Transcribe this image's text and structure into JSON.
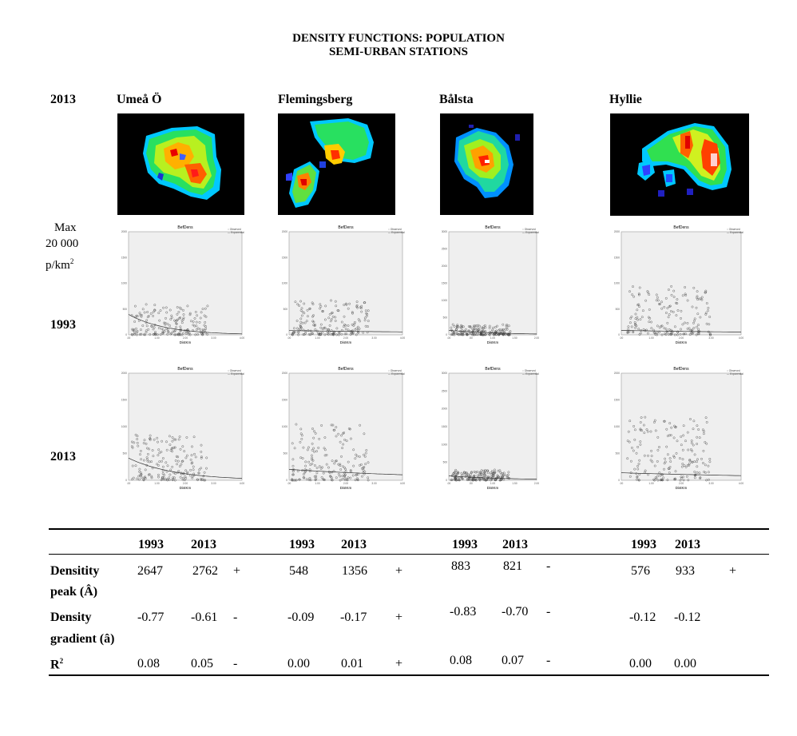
{
  "title": {
    "line1": "DENSITY FUNCTIONS: POPULATION",
    "line2": "SEMI-URBAN STATIONS"
  },
  "row_labels": {
    "maps_year": "2013",
    "row1_year": "1993",
    "row2_year": "2013",
    "max_line1": "Max",
    "max_line2": "20 000",
    "max_line3": "p/km",
    "max_sup": "2"
  },
  "stations": [
    {
      "name": "Umeå Ö"
    },
    {
      "name": "Flemingsberg"
    },
    {
      "name": "Bålsta"
    },
    {
      "name": "Hyllie"
    }
  ],
  "plot_labels": {
    "title": "BefDens",
    "xlabel_default": "DistKm",
    "xlabel_balsta": "DistKm",
    "legend_observed": "Observed",
    "legend_exponential": "Exponential",
    "yticks": [
      "0",
      "500",
      "1000",
      "1500",
      "2000"
    ],
    "yticks_balsta": [
      "0",
      "500",
      "1000",
      "1500",
      "2000",
      "2500",
      "3000"
    ],
    "xticks": [
      ".00",
      "1.00",
      "2.00",
      "3.00",
      "4.00"
    ],
    "xticks_balsta": [
      ".00",
      ".50",
      "1.00",
      "1.50",
      "2.00"
    ]
  },
  "chart_data": [
    {
      "type": "scatter",
      "title": "BefDens",
      "xlabel": "DistKm",
      "station": "Umeå Ö",
      "year": "1993",
      "xlim": [
        0,
        4
      ],
      "ylim": [
        0,
        2000
      ],
      "series": [
        {
          "name": "Observed",
          "peak_y": 600,
          "x_range": [
            0.1,
            2.8
          ]
        },
        {
          "name": "Exponential",
          "a": 2647,
          "b": -0.77
        }
      ]
    },
    {
      "type": "scatter",
      "title": "BefDens",
      "xlabel": "DistKm",
      "station": "Flemingsberg",
      "year": "1993",
      "xlim": [
        0,
        4
      ],
      "ylim": [
        0,
        2000
      ],
      "series": [
        {
          "name": "Observed",
          "peak_y": 700,
          "x_range": [
            0.1,
            2.8
          ]
        },
        {
          "name": "Exponential",
          "a": 548,
          "b": -0.09
        }
      ]
    },
    {
      "type": "scatter",
      "title": "BefDens",
      "xlabel": "DistKm",
      "station": "Bålsta",
      "year": "1993",
      "xlim": [
        0,
        2
      ],
      "ylim": [
        0,
        3000
      ],
      "series": [
        {
          "name": "Observed",
          "peak_y": 300,
          "x_range": [
            0.05,
            1.4
          ]
        },
        {
          "name": "Exponential",
          "a": 883,
          "b": -0.83
        }
      ]
    },
    {
      "type": "scatter",
      "title": "BefDens",
      "xlabel": "DistKm",
      "station": "Hyllie",
      "year": "1993",
      "xlim": [
        0,
        4
      ],
      "ylim": [
        0,
        2000
      ],
      "series": [
        {
          "name": "Observed",
          "peak_y": 950,
          "x_range": [
            0.2,
            3.0
          ]
        },
        {
          "name": "Exponential",
          "a": 576,
          "b": -0.12
        }
      ]
    },
    {
      "type": "scatter",
      "title": "BefDens",
      "xlabel": "DistKm",
      "station": "Umeå Ö",
      "year": "2013",
      "xlim": [
        0,
        4
      ],
      "ylim": [
        0,
        2000
      ],
      "series": [
        {
          "name": "Observed",
          "peak_y": 850,
          "x_range": [
            0.1,
            2.8
          ]
        },
        {
          "name": "Exponential",
          "a": 2762,
          "b": -0.61
        }
      ]
    },
    {
      "type": "scatter",
      "title": "BefDens",
      "xlabel": "DistKm",
      "station": "Flemingsberg",
      "year": "2013",
      "xlim": [
        0,
        4
      ],
      "ylim": [
        0,
        2000
      ],
      "series": [
        {
          "name": "Observed",
          "peak_y": 1050,
          "x_range": [
            0.1,
            2.8
          ]
        },
        {
          "name": "Exponential",
          "a": 1356,
          "b": -0.17
        }
      ]
    },
    {
      "type": "scatter",
      "title": "BefDens",
      "xlabel": "DistKm",
      "station": "Bålsta",
      "year": "2013",
      "xlim": [
        0,
        2
      ],
      "ylim": [
        0,
        3000
      ],
      "series": [
        {
          "name": "Observed",
          "peak_y": 300,
          "x_range": [
            0.05,
            1.4
          ]
        },
        {
          "name": "Exponential",
          "a": 821,
          "b": -0.7
        }
      ]
    },
    {
      "type": "scatter",
      "title": "BefDens",
      "xlabel": "DistKm",
      "station": "Hyllie",
      "year": "2013",
      "xlim": [
        0,
        4
      ],
      "ylim": [
        0,
        2000
      ],
      "series": [
        {
          "name": "Observed",
          "peak_y": 1200,
          "x_range": [
            0.2,
            3.0
          ]
        },
        {
          "name": "Exponential",
          "a": 933,
          "b": -0.12
        }
      ]
    }
  ],
  "table": {
    "years": [
      "1993",
      "2013"
    ],
    "rows": [
      {
        "label1": "Densitity",
        "label2": "peak (Â)",
        "groups": [
          {
            "v1993": "2647",
            "v2013": "2762",
            "sign": "+"
          },
          {
            "v1993": "548",
            "v2013": "1356",
            "sign": "+"
          },
          {
            "v1993": "883",
            "v2013": "821",
            "sign": "-"
          },
          {
            "v1993": "576",
            "v2013": "933",
            "sign": "+"
          }
        ]
      },
      {
        "label1": "Density",
        "label2": "gradient (â)",
        "groups": [
          {
            "v1993": "-0.77",
            "v2013": "-0.61",
            "sign": "-"
          },
          {
            "v1993": "-0.09",
            "v2013": "-0.17",
            "sign": "+"
          },
          {
            "v1993": "-0.83",
            "v2013": "-0.70",
            "sign": "-"
          },
          {
            "v1993": "-0.12",
            "v2013": "-0.12",
            "sign": ""
          }
        ]
      },
      {
        "label1": "R",
        "label_sup": "2",
        "groups": [
          {
            "v1993": "0.08",
            "v2013": "0.05",
            "sign": "-"
          },
          {
            "v1993": "0.00",
            "v2013": "0.01",
            "sign": "+"
          },
          {
            "v1993": "0.08",
            "v2013": "0.07",
            "sign": "-"
          },
          {
            "v1993": "0.00",
            "v2013": "0.00",
            "sign": ""
          }
        ]
      }
    ]
  }
}
